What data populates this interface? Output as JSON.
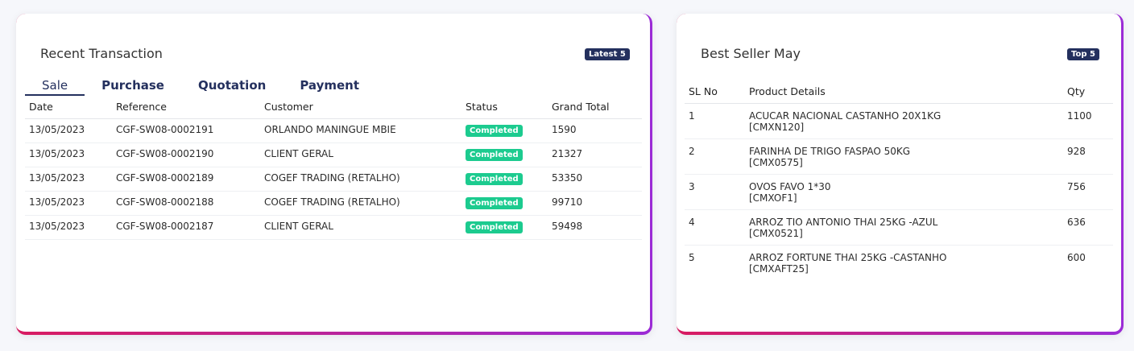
{
  "recent_transaction": {
    "title": "Recent Transaction",
    "badge": "Latest 5",
    "tabs": [
      {
        "label": "Sale",
        "active": true
      },
      {
        "label": "Purchase",
        "active": false
      },
      {
        "label": "Quotation",
        "active": false
      },
      {
        "label": "Payment",
        "active": false
      }
    ],
    "columns": [
      "Date",
      "Reference",
      "Customer",
      "Status",
      "Grand Total"
    ],
    "rows": [
      {
        "date": "13/05/2023",
        "reference": "CGF-SW08-0002191",
        "customer": "ORLANDO MANINGUE MBIE",
        "status": "Completed",
        "grand_total": "1590"
      },
      {
        "date": "13/05/2023",
        "reference": "CGF-SW08-0002190",
        "customer": "CLIENT GERAL",
        "status": "Completed",
        "grand_total": "21327"
      },
      {
        "date": "13/05/2023",
        "reference": "CGF-SW08-0002189",
        "customer": "COGEF TRADING (RETALHO)",
        "status": "Completed",
        "grand_total": "53350"
      },
      {
        "date": "13/05/2023",
        "reference": "CGF-SW08-0002188",
        "customer": "COGEF TRADING (RETALHO)",
        "status": "Completed",
        "grand_total": "99710"
      },
      {
        "date": "13/05/2023",
        "reference": "CGF-SW08-0002187",
        "customer": "CLIENT GERAL",
        "status": "Completed",
        "grand_total": "59498"
      }
    ],
    "status_color": "#1ccb8f"
  },
  "best_seller": {
    "title": "Best Seller May",
    "badge": "Top 5",
    "columns": [
      "SL No",
      "Product Details",
      "Qty"
    ],
    "rows": [
      {
        "sl": "1",
        "name": "ACUCAR NACIONAL CASTANHO 20X1KG",
        "code": "[CMXN120]",
        "qty": "1100"
      },
      {
        "sl": "2",
        "name": "FARINHA DE TRIGO FASPAO 50KG",
        "code": "[CMX0575]",
        "qty": "928"
      },
      {
        "sl": "3",
        "name": "OVOS FAVO 1*30",
        "code": "[CMXOF1]",
        "qty": "756"
      },
      {
        "sl": "4",
        "name": "ARROZ TIO ANTONIO THAI 25KG -AZUL",
        "code": "[CMX0521]",
        "qty": "636"
      },
      {
        "sl": "5",
        "name": "ARROZ FORTUNE THAI 25KG -CASTANHO",
        "code": "[CMXAFT25]",
        "qty": "600"
      }
    ]
  },
  "colors": {
    "badge": "#24305e",
    "accent_gradient_start": "#d81b60",
    "accent_gradient_end": "#9b2bd6"
  }
}
